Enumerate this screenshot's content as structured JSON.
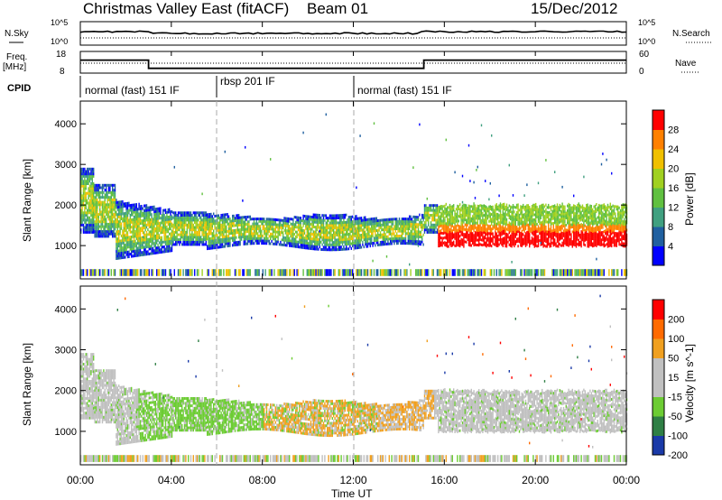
{
  "header": {
    "title": "Christmas Valley East (fitACF)",
    "beam": "Beam 01",
    "date": "15/Dec/2012"
  },
  "chart_data": [
    {
      "panel": "noise",
      "type": "line",
      "left_label": "N.Sky",
      "right_label": "N.Search",
      "left_ticks": [
        "10^5",
        "10^0"
      ],
      "right_ticks": [
        "10^5",
        "10^0"
      ]
    },
    {
      "panel": "frequency",
      "type": "line",
      "left_label": "Freq.",
      "left_unit": "[MHz]",
      "right_label": "Nave",
      "left_ticks": [
        "18",
        "8"
      ],
      "right_ticks": [
        "60",
        "0"
      ],
      "x_hours": [
        0,
        3.0,
        3.0,
        15.1,
        15.1,
        24
      ],
      "freq_mhz": [
        14,
        14,
        10.2,
        10.2,
        14,
        14
      ]
    },
    {
      "panel": "cpid",
      "type": "table",
      "label": "CPID",
      "segments": [
        {
          "start_h": 0,
          "end_h": 6,
          "text": "normal (fast) 151 IF"
        },
        {
          "start_h": 6,
          "end_h": 12,
          "text": "rbsp 201 IF"
        },
        {
          "start_h": 12,
          "end_h": 24,
          "text": "normal (fast) 151 IF"
        }
      ]
    },
    {
      "panel": "power",
      "type": "heatmap",
      "ylabel": "Slant Range [km]",
      "yticks": [
        "1000",
        "2000",
        "3000",
        "4000"
      ],
      "ylim": [
        180,
        4560
      ],
      "colorbar_label": "Power [dB]",
      "colorbar_ticks": [
        "4",
        "8",
        "12",
        "16",
        "20",
        "24",
        "28"
      ],
      "colors": [
        "#0000ff",
        "#2060a0",
        "#40a080",
        "#60c040",
        "#a0d020",
        "#f0c000",
        "#ff8000",
        "#ff0000"
      ]
    },
    {
      "panel": "velocity",
      "type": "heatmap",
      "ylabel": "Slant Range [km]",
      "yticks": [
        "1000",
        "2000",
        "3000",
        "4000"
      ],
      "ylim": [
        180,
        4560
      ],
      "colorbar_label": "Velocity [m s^-1]",
      "colorbar_ticks": [
        "200",
        "100",
        "50",
        "15",
        "-15",
        "-50",
        "-100",
        "-200"
      ],
      "colors": [
        "#1a3aa8",
        "#2f7f45",
        "#6ccc33",
        "#c0c0c0",
        "#c0c0c0",
        "#f0a020",
        "#ff6a00",
        "#ff0000"
      ]
    }
  ],
  "xaxis": {
    "label": "Time UT",
    "ticks": [
      "00:00",
      "04:00",
      "08:00",
      "12:00",
      "16:00",
      "20:00",
      "00:00"
    ]
  }
}
